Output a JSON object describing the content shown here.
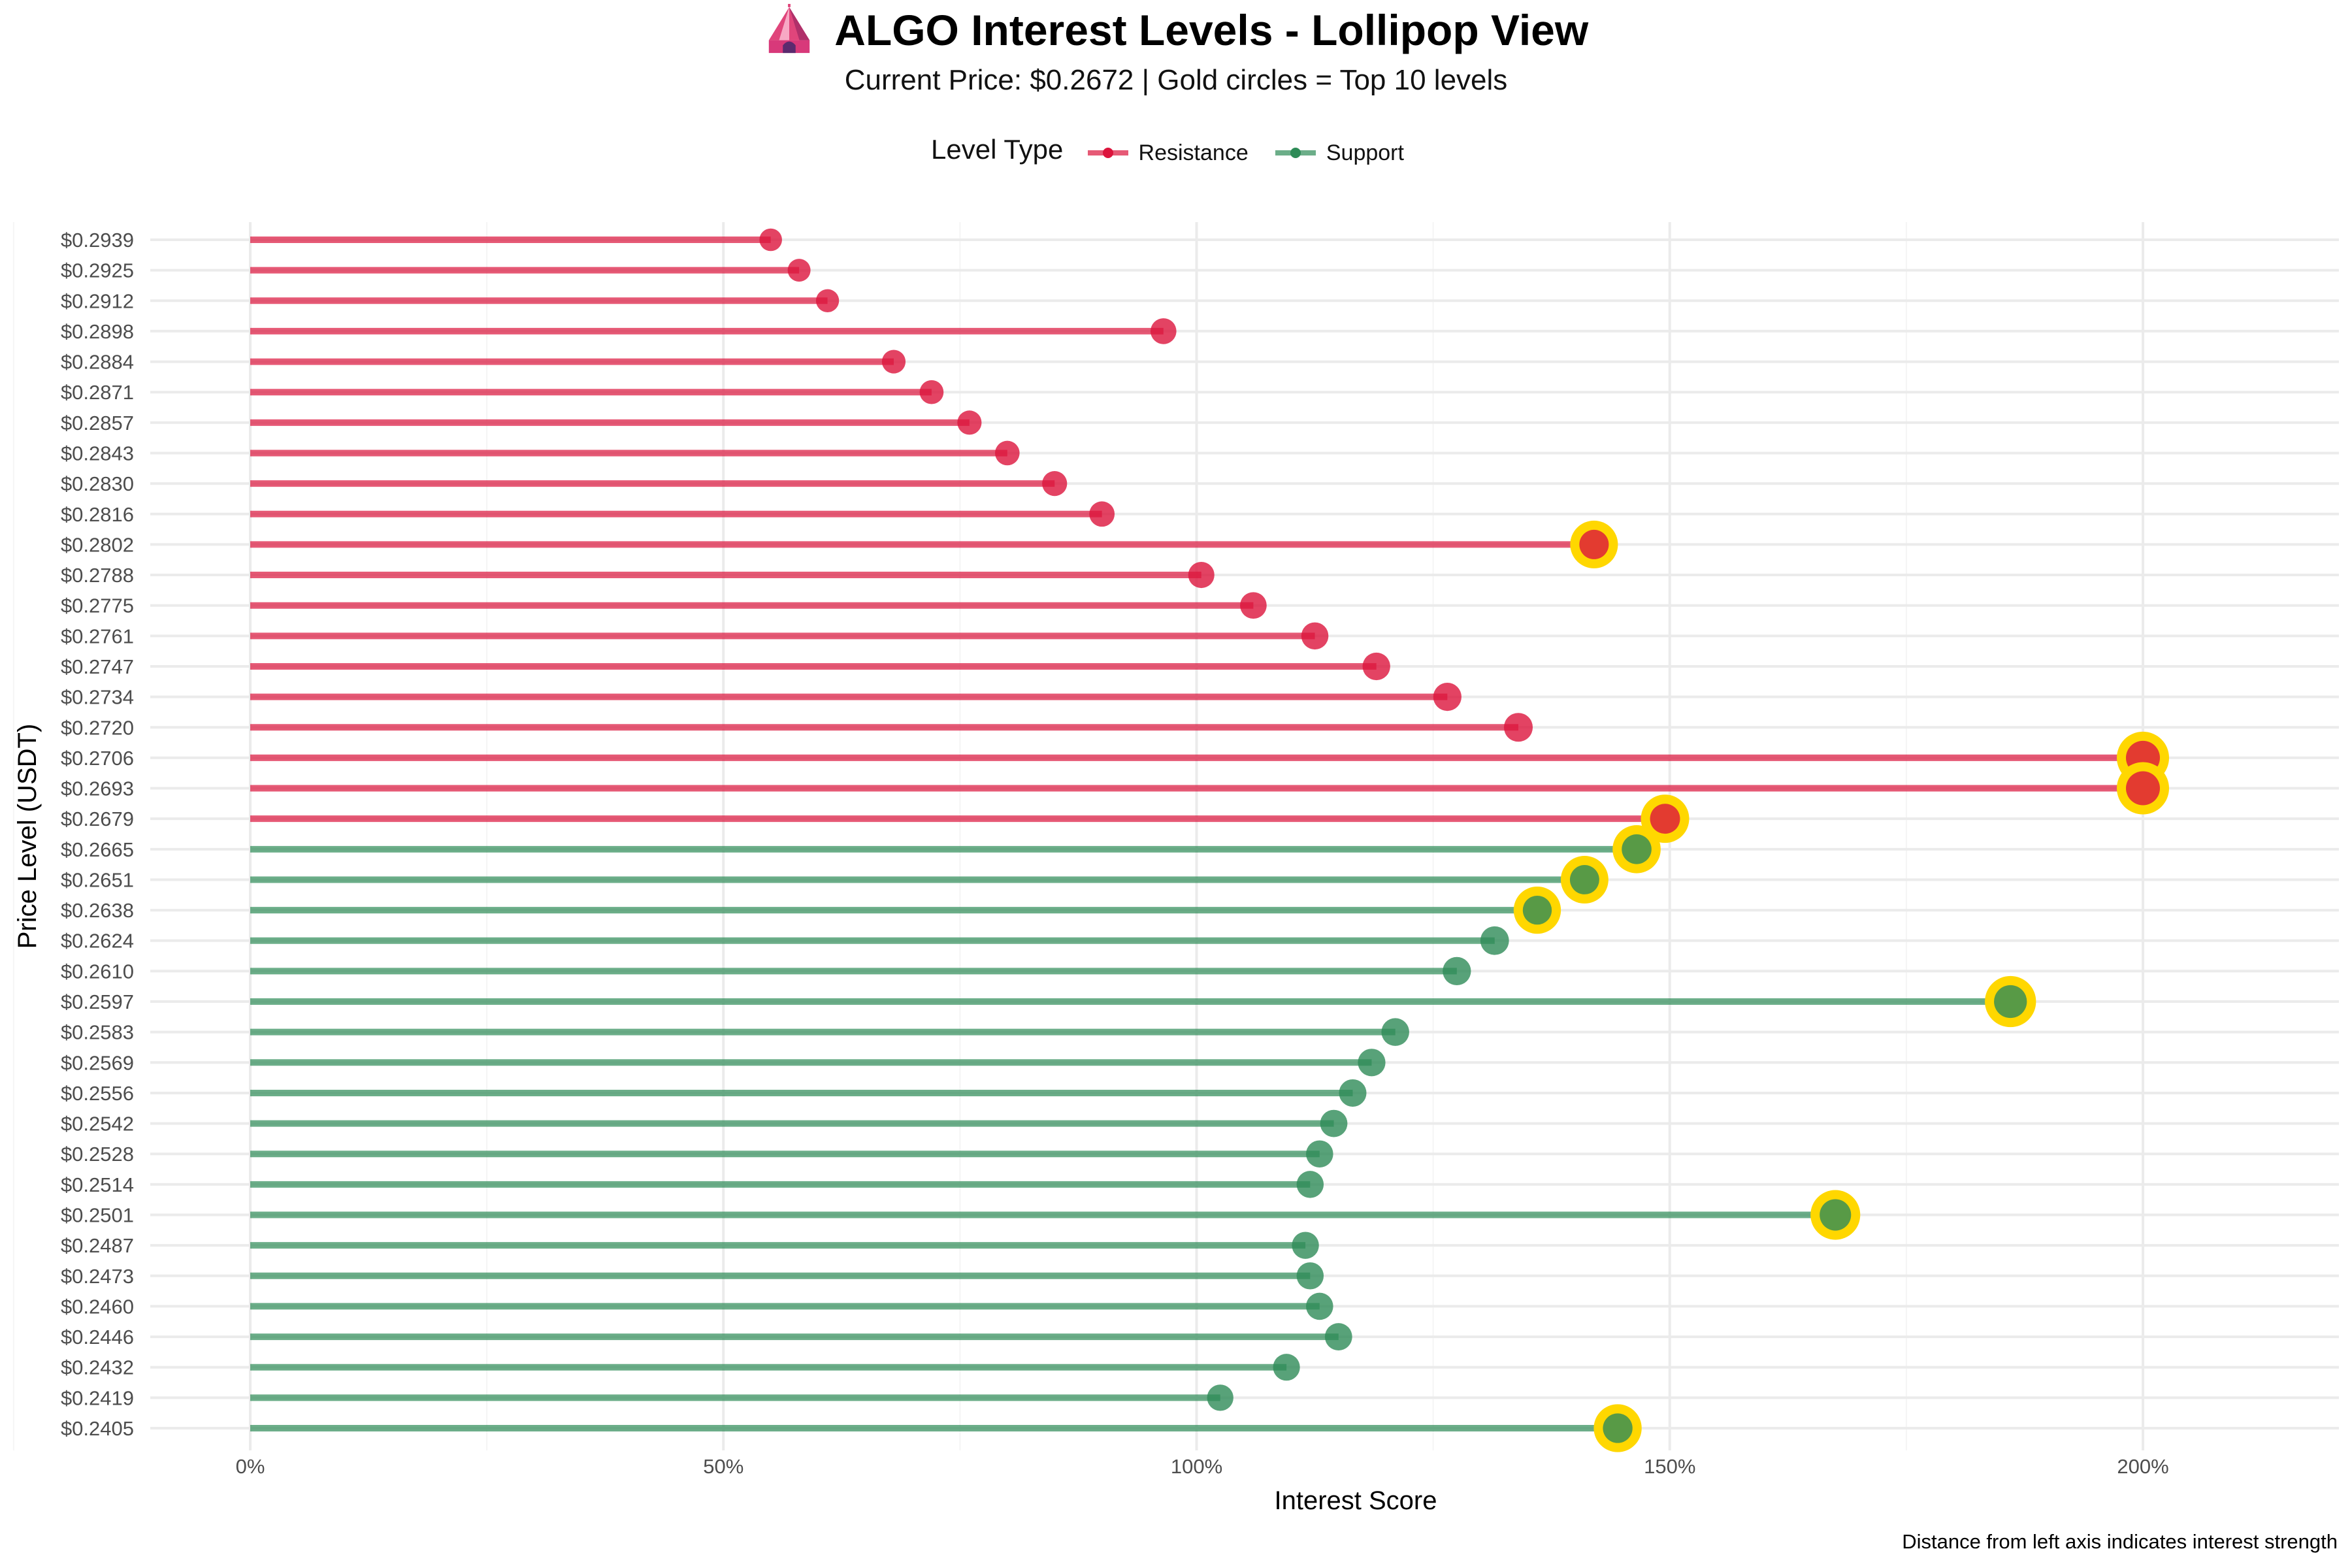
{
  "header": {
    "title": "ALGO Interest Levels - Lollipop View",
    "subtitle": "Current Price: $0.2672 | Gold circles = Top 10 levels",
    "icon": "circus-tent-icon"
  },
  "legend": {
    "title": "Level Type",
    "entries": [
      {
        "label": "Resistance",
        "color": "#DC143C"
      },
      {
        "label": "Support",
        "color": "#2E8B57"
      }
    ]
  },
  "caption": "Distance from left axis indicates interest strength",
  "colors": {
    "resistance": "#DC143C",
    "support": "#2E8B57",
    "highlight": "#FFD700",
    "grid": "#EBEBEB"
  },
  "chart_data": {
    "type": "lollipop",
    "xlabel": "Interest Score",
    "ylabel": "Price Level (USDT)",
    "xlim": [
      -0.1,
      2.2
    ],
    "x_ticks": [
      0,
      0.5,
      1.0,
      1.5,
      2.0
    ],
    "x_tick_labels": [
      "0%",
      "50%",
      "100%",
      "150%",
      "200%"
    ],
    "x_tick_format": "percent",
    "grid": true,
    "legend_position": "top",
    "levels": [
      {
        "price": "$0.2939",
        "score": 0.55,
        "type": "Resistance",
        "top10": false
      },
      {
        "price": "$0.2925",
        "score": 0.58,
        "type": "Resistance",
        "top10": false
      },
      {
        "price": "$0.2912",
        "score": 0.61,
        "type": "Resistance",
        "top10": false
      },
      {
        "price": "$0.2898",
        "score": 0.965,
        "type": "Resistance",
        "top10": false
      },
      {
        "price": "$0.2884",
        "score": 0.68,
        "type": "Resistance",
        "top10": false
      },
      {
        "price": "$0.2871",
        "score": 0.72,
        "type": "Resistance",
        "top10": false
      },
      {
        "price": "$0.2857",
        "score": 0.76,
        "type": "Resistance",
        "top10": false
      },
      {
        "price": "$0.2843",
        "score": 0.8,
        "type": "Resistance",
        "top10": false
      },
      {
        "price": "$0.2830",
        "score": 0.85,
        "type": "Resistance",
        "top10": false
      },
      {
        "price": "$0.2816",
        "score": 0.9,
        "type": "Resistance",
        "top10": false
      },
      {
        "price": "$0.2802",
        "score": 1.42,
        "type": "Resistance",
        "top10": true
      },
      {
        "price": "$0.2788",
        "score": 1.005,
        "type": "Resistance",
        "top10": false
      },
      {
        "price": "$0.2775",
        "score": 1.06,
        "type": "Resistance",
        "top10": false
      },
      {
        "price": "$0.2761",
        "score": 1.125,
        "type": "Resistance",
        "top10": false
      },
      {
        "price": "$0.2747",
        "score": 1.19,
        "type": "Resistance",
        "top10": false
      },
      {
        "price": "$0.2734",
        "score": 1.265,
        "type": "Resistance",
        "top10": false
      },
      {
        "price": "$0.2720",
        "score": 1.34,
        "type": "Resistance",
        "top10": false
      },
      {
        "price": "$0.2706",
        "score": 2.0,
        "type": "Resistance",
        "top10": true
      },
      {
        "price": "$0.2693",
        "score": 2.0,
        "type": "Resistance",
        "top10": true
      },
      {
        "price": "$0.2679",
        "score": 1.495,
        "type": "Resistance",
        "top10": true
      },
      {
        "price": "$0.2665",
        "score": 1.465,
        "type": "Support",
        "top10": true
      },
      {
        "price": "$0.2651",
        "score": 1.41,
        "type": "Support",
        "top10": true
      },
      {
        "price": "$0.2638",
        "score": 1.36,
        "type": "Support",
        "top10": true
      },
      {
        "price": "$0.2624",
        "score": 1.315,
        "type": "Support",
        "top10": false
      },
      {
        "price": "$0.2610",
        "score": 1.275,
        "type": "Support",
        "top10": false
      },
      {
        "price": "$0.2597",
        "score": 1.86,
        "type": "Support",
        "top10": true
      },
      {
        "price": "$0.2583",
        "score": 1.21,
        "type": "Support",
        "top10": false
      },
      {
        "price": "$0.2569",
        "score": 1.185,
        "type": "Support",
        "top10": false
      },
      {
        "price": "$0.2556",
        "score": 1.165,
        "type": "Support",
        "top10": false
      },
      {
        "price": "$0.2542",
        "score": 1.145,
        "type": "Support",
        "top10": false
      },
      {
        "price": "$0.2528",
        "score": 1.13,
        "type": "Support",
        "top10": false
      },
      {
        "price": "$0.2514",
        "score": 1.12,
        "type": "Support",
        "top10": false
      },
      {
        "price": "$0.2501",
        "score": 1.675,
        "type": "Support",
        "top10": true
      },
      {
        "price": "$0.2487",
        "score": 1.115,
        "type": "Support",
        "top10": false
      },
      {
        "price": "$0.2473",
        "score": 1.12,
        "type": "Support",
        "top10": false
      },
      {
        "price": "$0.2460",
        "score": 1.13,
        "type": "Support",
        "top10": false
      },
      {
        "price": "$0.2446",
        "score": 1.15,
        "type": "Support",
        "top10": false
      },
      {
        "price": "$0.2432",
        "score": 1.095,
        "type": "Support",
        "top10": false
      },
      {
        "price": "$0.2419",
        "score": 1.025,
        "type": "Support",
        "top10": false
      },
      {
        "price": "$0.2405",
        "score": 1.445,
        "type": "Support",
        "top10": true
      }
    ]
  }
}
